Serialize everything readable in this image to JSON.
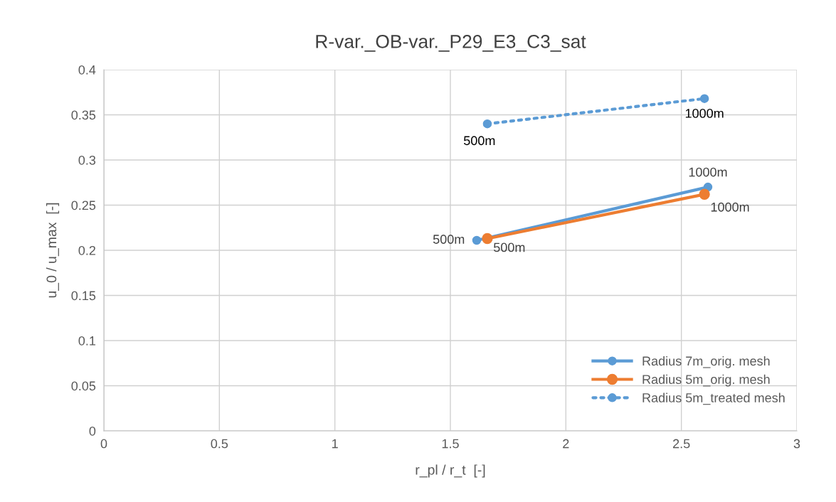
{
  "chart_data": {
    "type": "line",
    "title": "R-var._OB-var._P29_E3_C3_sat",
    "xlabel": "r_pl / r_t  [-]",
    "ylabel": "u_0 / u_max  [-]",
    "xlim": [
      0,
      3
    ],
    "xticks": [
      0,
      0.5,
      1,
      1.5,
      2,
      2.5,
      3
    ],
    "ylim": [
      0,
      0.4
    ],
    "yticks": [
      0,
      0.05,
      0.1,
      0.15,
      0.2,
      0.25,
      0.3,
      0.35,
      0.4
    ],
    "grid": true,
    "legend": "bottom right",
    "marker": "circle",
    "series": [
      {
        "name": "Radius 7m_orig. mesh",
        "color": "#5b9bd5",
        "line_style": "solid",
        "x": [
          1.614,
          2.615
        ],
        "values": [
          0.211,
          0.27
        ]
      },
      {
        "name": "Radius 5m_orig. mesh",
        "color": "#ed7d31",
        "line_style": "solid",
        "x": [
          1.66,
          2.6
        ],
        "values": [
          0.213,
          0.262
        ]
      },
      {
        "name": "Radius 5m_treated mesh",
        "color": "#5b9bd5",
        "line_style": "dotted",
        "x": [
          1.66,
          2.6
        ],
        "values": [
          0.34,
          0.368
        ]
      }
    ],
    "annotations": [
      {
        "text": "500m",
        "x": 1.614,
        "y": 0.211
      },
      {
        "text": "1000m",
        "x": 2.615,
        "y": 0.27
      },
      {
        "text": "500m",
        "x": 1.66,
        "y": 0.213
      },
      {
        "text": "1000m",
        "x": 2.6,
        "y": 0.262
      },
      {
        "text": "500m",
        "x": 1.66,
        "y": 0.34
      },
      {
        "text": "1000m",
        "x": 2.6,
        "y": 0.368
      }
    ]
  }
}
